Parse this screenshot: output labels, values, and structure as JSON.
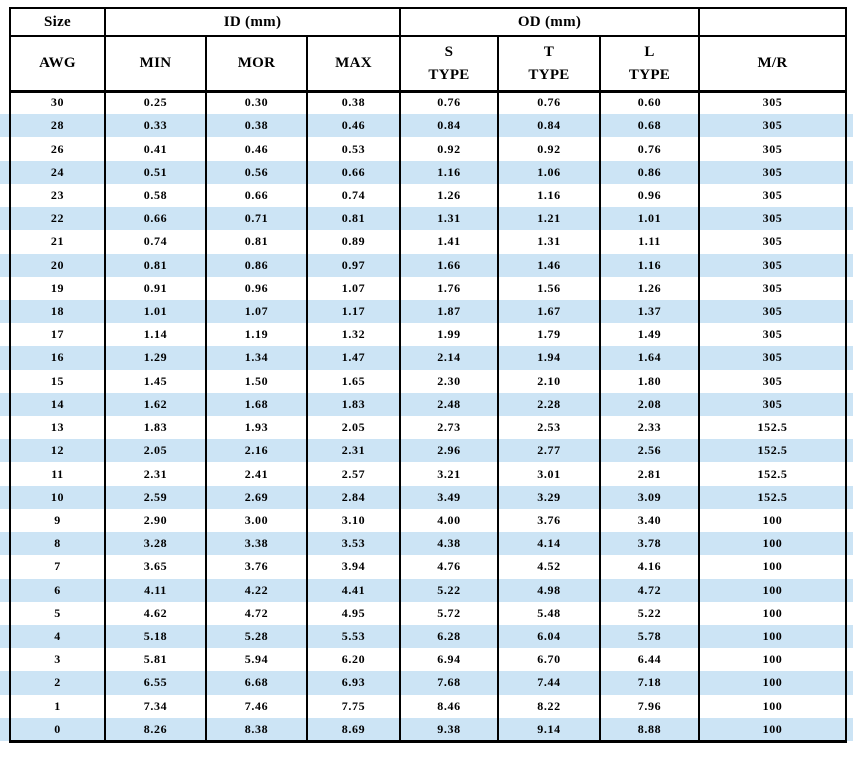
{
  "colors": {
    "background": "#ffffff",
    "stripe": "#cce4f5",
    "grid_line": "#000000",
    "text": "#000000"
  },
  "table": {
    "header": {
      "row1": [
        "Size",
        "ID (mm)",
        "OD (mm)",
        ""
      ],
      "row2": [
        "AWG",
        "MIN",
        "MOR",
        "MAX",
        "S\nTYPE",
        "T\nTYPE",
        "L\nTYPE",
        "M/R"
      ]
    }
  },
  "chart_data": {
    "type": "table",
    "title": "AWG size vs ID (mm), OD (mm) and M/R",
    "column_groups": [
      {
        "label": "Size",
        "span": 1
      },
      {
        "label": "ID (mm)",
        "span": 3
      },
      {
        "label": "OD (mm)",
        "span": 3
      },
      {
        "label": "",
        "span": 1
      }
    ],
    "columns": [
      "AWG",
      "MIN",
      "MOR",
      "MAX",
      "S TYPE",
      "T TYPE",
      "L TYPE",
      "M/R"
    ],
    "rows": [
      [
        "30",
        "0.25",
        "0.30",
        "0.38",
        "0.76",
        "0.76",
        "0.60",
        "305"
      ],
      [
        "28",
        "0.33",
        "0.38",
        "0.46",
        "0.84",
        "0.84",
        "0.68",
        "305"
      ],
      [
        "26",
        "0.41",
        "0.46",
        "0.53",
        "0.92",
        "0.92",
        "0.76",
        "305"
      ],
      [
        "24",
        "0.51",
        "0.56",
        "0.66",
        "1.16",
        "1.06",
        "0.86",
        "305"
      ],
      [
        "23",
        "0.58",
        "0.66",
        "0.74",
        "1.26",
        "1.16",
        "0.96",
        "305"
      ],
      [
        "22",
        "0.66",
        "0.71",
        "0.81",
        "1.31",
        "1.21",
        "1.01",
        "305"
      ],
      [
        "21",
        "0.74",
        "0.81",
        "0.89",
        "1.41",
        "1.31",
        "1.11",
        "305"
      ],
      [
        "20",
        "0.81",
        "0.86",
        "0.97",
        "1.66",
        "1.46",
        "1.16",
        "305"
      ],
      [
        "19",
        "0.91",
        "0.96",
        "1.07",
        "1.76",
        "1.56",
        "1.26",
        "305"
      ],
      [
        "18",
        "1.01",
        "1.07",
        "1.17",
        "1.87",
        "1.67",
        "1.37",
        "305"
      ],
      [
        "17",
        "1.14",
        "1.19",
        "1.32",
        "1.99",
        "1.79",
        "1.49",
        "305"
      ],
      [
        "16",
        "1.29",
        "1.34",
        "1.47",
        "2.14",
        "1.94",
        "1.64",
        "305"
      ],
      [
        "15",
        "1.45",
        "1.50",
        "1.65",
        "2.30",
        "2.10",
        "1.80",
        "305"
      ],
      [
        "14",
        "1.62",
        "1.68",
        "1.83",
        "2.48",
        "2.28",
        "2.08",
        "305"
      ],
      [
        "13",
        "1.83",
        "1.93",
        "2.05",
        "2.73",
        "2.53",
        "2.33",
        "152.5"
      ],
      [
        "12",
        "2.05",
        "2.16",
        "2.31",
        "2.96",
        "2.77",
        "2.56",
        "152.5"
      ],
      [
        "11",
        "2.31",
        "2.41",
        "2.57",
        "3.21",
        "3.01",
        "2.81",
        "152.5"
      ],
      [
        "10",
        "2.59",
        "2.69",
        "2.84",
        "3.49",
        "3.29",
        "3.09",
        "152.5"
      ],
      [
        "9",
        "2.90",
        "3.00",
        "3.10",
        "4.00",
        "3.76",
        "3.40",
        "100"
      ],
      [
        "8",
        "3.28",
        "3.38",
        "3.53",
        "4.38",
        "4.14",
        "3.78",
        "100"
      ],
      [
        "7",
        "3.65",
        "3.76",
        "3.94",
        "4.76",
        "4.52",
        "4.16",
        "100"
      ],
      [
        "6",
        "4.11",
        "4.22",
        "4.41",
        "5.22",
        "4.98",
        "4.72",
        "100"
      ],
      [
        "5",
        "4.62",
        "4.72",
        "4.95",
        "5.72",
        "5.48",
        "5.22",
        "100"
      ],
      [
        "4",
        "5.18",
        "5.28",
        "5.53",
        "6.28",
        "6.04",
        "5.78",
        "100"
      ],
      [
        "3",
        "5.81",
        "5.94",
        "6.20",
        "6.94",
        "6.70",
        "6.44",
        "100"
      ],
      [
        "2",
        "6.55",
        "6.68",
        "6.93",
        "7.68",
        "7.44",
        "7.18",
        "100"
      ],
      [
        "1",
        "7.34",
        "7.46",
        "7.75",
        "8.46",
        "8.22",
        "7.96",
        "100"
      ],
      [
        "0",
        "8.26",
        "8.38",
        "8.69",
        "9.38",
        "9.14",
        "8.88",
        "100"
      ]
    ],
    "layout_hints": {
      "striping": "every second data row (starting with AWG 28) shaded light blue, bands bleed full image width",
      "grid": "black vertical column rules full height; horizontal rules only around header rows and table top/bottom"
    }
  }
}
